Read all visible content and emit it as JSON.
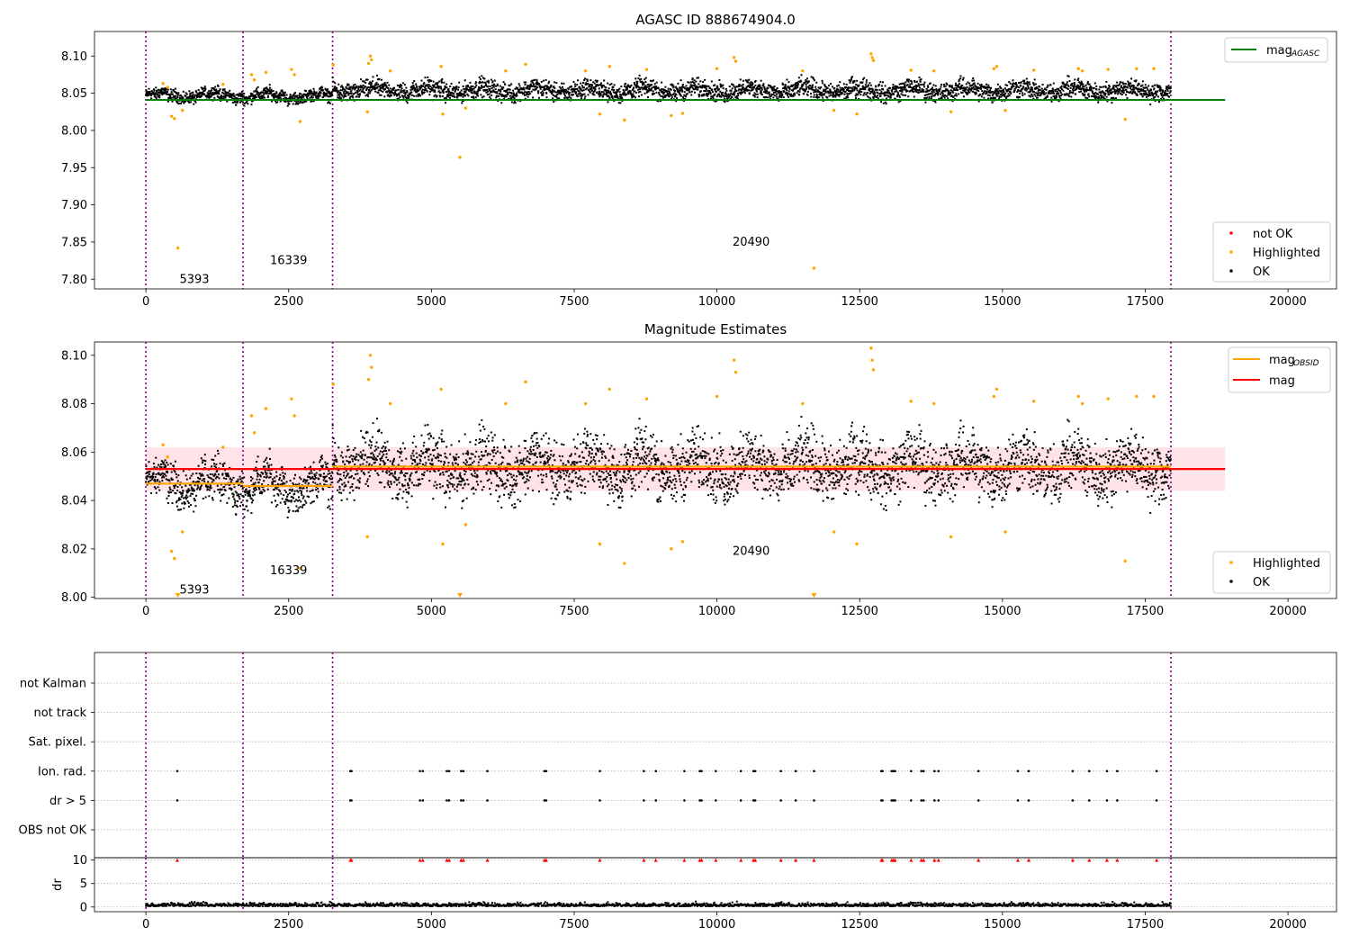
{
  "figure": {
    "title": "AGASC ID 888674904.0"
  },
  "colors": {
    "ok": "#000000",
    "highlighted": "#ffa500",
    "not_ok": "#ff0000",
    "mag_agasc": "#008000",
    "mag": "#ff0000",
    "mag_obsid": "#ffa500",
    "obsid_line": "#800080",
    "band": "#ffc0cb",
    "grid": "#b0b0b0"
  },
  "chart_data": [
    {
      "id": "agasc",
      "type": "scatter",
      "title": "AGASC ID 888674904.0",
      "xlim": [
        -900,
        20850
      ],
      "ylim": [
        7.787,
        8.133
      ],
      "xticks": [
        0,
        2500,
        5000,
        7500,
        10000,
        12500,
        15000,
        17500,
        20000
      ],
      "xtick_labels": [
        "0",
        "2500",
        "5000",
        "7500",
        "10000",
        "12500",
        "15000",
        "17500",
        "20000"
      ],
      "yticks": [
        7.8,
        7.85,
        7.9,
        7.95,
        8.0,
        8.05,
        8.1
      ],
      "ytick_labels": [
        "7.80",
        "7.85",
        "7.90",
        "7.95",
        "8.00",
        "8.05",
        "8.10"
      ],
      "legend_lines": [
        {
          "label": "mag",
          "sub": "AGASC",
          "color": "#008000"
        }
      ],
      "legend_points": [
        {
          "label": "not OK",
          "color": "#ff0000"
        },
        {
          "label": "Highlighted",
          "color": "#ffa500"
        },
        {
          "label": "OK",
          "color": "#000000"
        }
      ],
      "hlines": [
        {
          "y": 8.041,
          "x0": 0,
          "x1": 18900,
          "color": "#008000"
        }
      ],
      "obsid_boundaries": [
        0,
        1700,
        3270,
        17950
      ],
      "obsid_labels": [
        {
          "text": "5393",
          "x": 850,
          "y": 7.8
        },
        {
          "text": "16339",
          "x": 2500,
          "y": 7.825
        },
        {
          "text": "20490",
          "x": 10600,
          "y": 7.85
        }
      ]
    },
    {
      "id": "estimates",
      "type": "scatter",
      "title": "Magnitude Estimates",
      "xlim": [
        -900,
        20850
      ],
      "ylim": [
        7.9995,
        8.1055
      ],
      "xticks": [
        0,
        2500,
        5000,
        7500,
        10000,
        12500,
        15000,
        17500,
        20000
      ],
      "xtick_labels": [
        "0",
        "2500",
        "5000",
        "7500",
        "10000",
        "12500",
        "15000",
        "17500",
        "20000"
      ],
      "yticks": [
        8.0,
        8.02,
        8.04,
        8.06,
        8.08,
        8.1
      ],
      "ytick_labels": [
        "8.00",
        "8.02",
        "8.04",
        "8.06",
        "8.08",
        "8.10"
      ],
      "legend_lines": [
        {
          "label": "mag",
          "sub": "OBSID",
          "color": "#ffa500"
        },
        {
          "label": "mag",
          "sub": "",
          "color": "#ff0000"
        }
      ],
      "legend_points": [
        {
          "label": "Highlighted",
          "color": "#ffa500"
        },
        {
          "label": "OK",
          "color": "#000000"
        }
      ],
      "hlines": [
        {
          "y": 8.053,
          "x0": 0,
          "x1": 18900,
          "color": "#ff0000"
        },
        {
          "y": 8.047,
          "x0": 0,
          "x1": 1700,
          "color": "#ffa500"
        },
        {
          "y": 8.046,
          "x0": 1700,
          "x1": 3270,
          "color": "#ffa500"
        },
        {
          "y": 8.054,
          "x0": 3270,
          "x1": 17950,
          "color": "#ffa500"
        }
      ],
      "bands": [
        {
          "y0": 8.044,
          "y1": 8.062,
          "x0": 0,
          "x1": 18900
        }
      ],
      "obsid_boundaries": [
        0,
        1700,
        3270,
        17950
      ],
      "obsid_labels": [
        {
          "text": "5393",
          "x": 850,
          "y": 8.003
        },
        {
          "text": "16339",
          "x": 2500,
          "y": 8.011
        },
        {
          "text": "20490",
          "x": 10600,
          "y": 8.019
        }
      ]
    },
    {
      "id": "flags",
      "type": "scatter",
      "categories": [
        "not Kalman",
        "not track",
        "Sat. pixel.",
        "Ion. rad.",
        "dr > 5",
        "OBS not OK"
      ],
      "flag_x": [
        550,
        3580,
        3600,
        4800,
        4850,
        5270,
        5310,
        5520,
        5560,
        5980,
        6980,
        7010,
        7950,
        8720,
        8930,
        9430,
        9700,
        9730,
        9980,
        10420,
        10640,
        10670,
        11120,
        11380,
        11700,
        12880,
        12900,
        13060,
        13090,
        13120,
        13400,
        13580,
        13620,
        13810,
        13880,
        14580,
        15270,
        15460,
        16230,
        16520,
        16830,
        17010,
        17700
      ],
      "flag_rows": [
        "Ion. rad.",
        "dr > 5"
      ]
    },
    {
      "id": "dr",
      "type": "scatter",
      "ylabel": "dr",
      "xlim": [
        -900,
        20850
      ],
      "ylim": [
        -1,
        10.5
      ],
      "xticks": [
        0,
        2500,
        5000,
        7500,
        10000,
        12500,
        15000,
        17500,
        20000
      ],
      "xtick_labels": [
        "0",
        "2500",
        "5000",
        "7500",
        "10000",
        "12500",
        "15000",
        "17500",
        "20000"
      ],
      "yticks": [
        0,
        5,
        10
      ],
      "ytick_labels": [
        "0",
        "5",
        "10"
      ],
      "capped_value": 10,
      "obsid_boundaries": [
        0,
        1700,
        3270,
        17950
      ]
    }
  ]
}
